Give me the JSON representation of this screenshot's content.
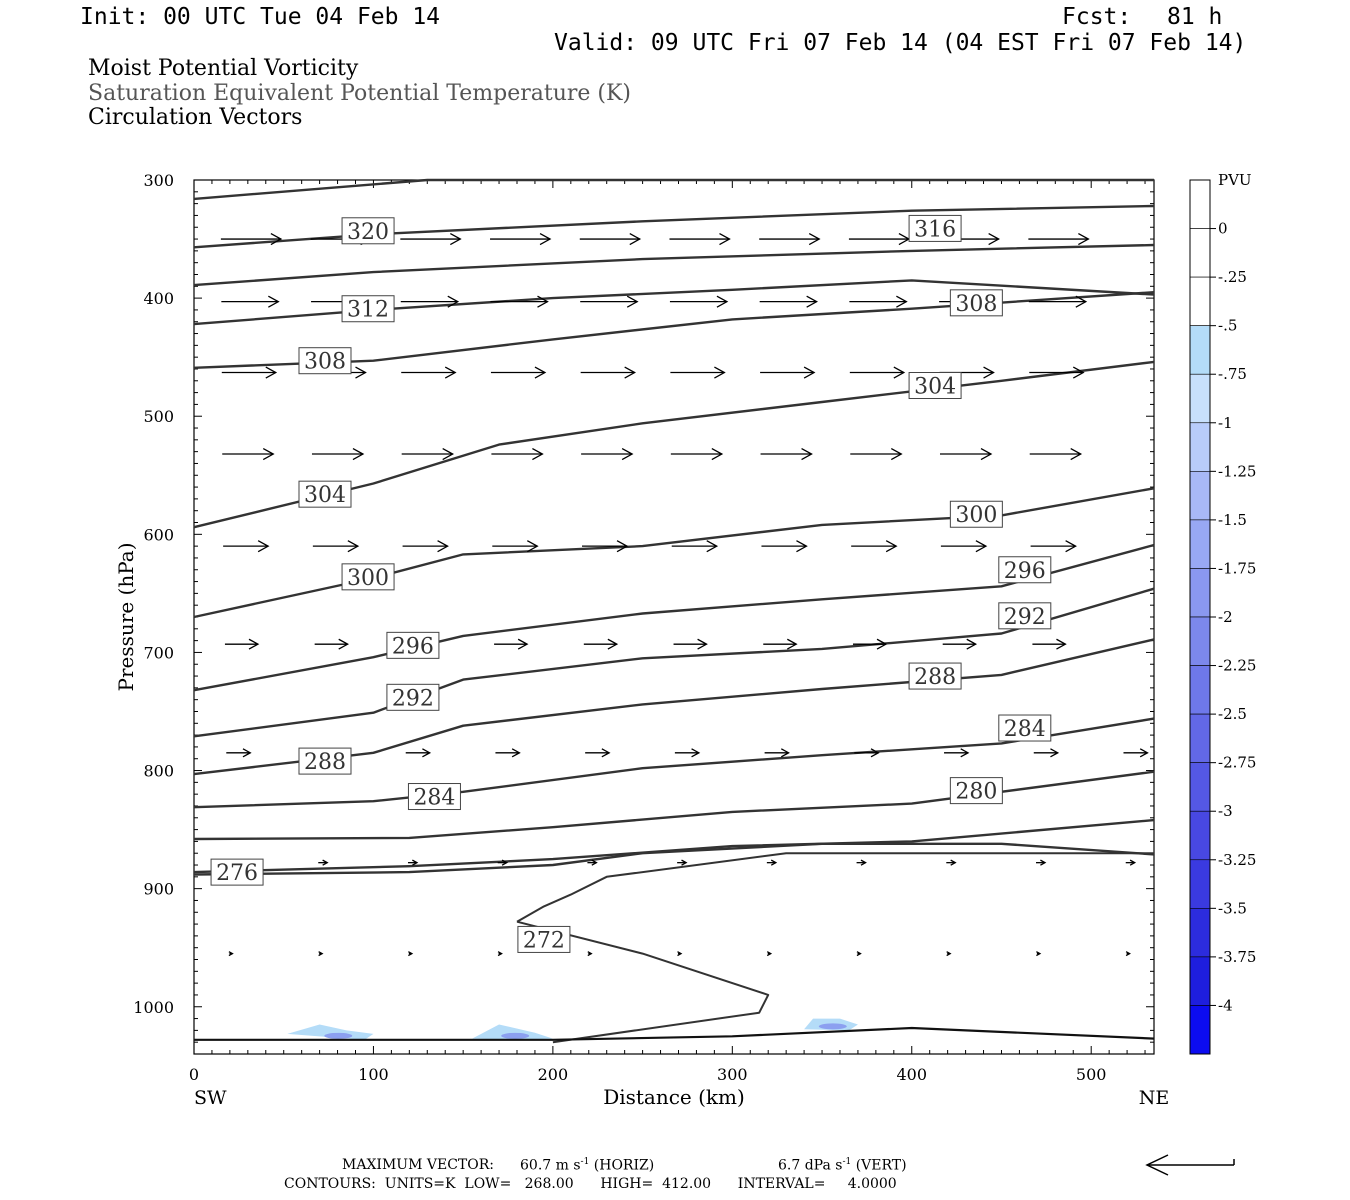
{
  "header": {
    "init": "Init: 00 UTC Tue 04 Feb 14",
    "fcst_label": "Fcst:",
    "fcst_value": "81 h",
    "valid": "Valid: 09 UTC Fri 07 Feb 14 (04 EST Fri 07 Feb 14)"
  },
  "titles": {
    "line1": "Moist Potential Vorticity",
    "line2": "Saturation Equivalent Potential Temperature (K)",
    "line3": "Circulation Vectors"
  },
  "footer": {
    "max_vector_label": "MAXIMUM VECTOR:",
    "max_horiz": "60.7 m s",
    "horiz_exp": "-1",
    "horiz_tag": "(HORIZ)",
    "max_vert": "6.7 dPa s",
    "vert_exp": "-1",
    "vert_tag": "(VERT)",
    "contours": "CONTOURS:  UNITS=K  LOW=   268.00      HIGH=  412.00      INTERVAL=     4.0000"
  },
  "colors": {
    "contour": "#333333",
    "pv_light": "#b4dcf8",
    "pv_mid": "#8ca0f0",
    "pv_dark": "#6464e6"
  },
  "chart_data": {
    "type": "cross-section",
    "xlabel": "Distance (km)",
    "ylabel": "Pressure (hPa)",
    "xlim": [
      0,
      535
    ],
    "ylim": [
      1040,
      300
    ],
    "x_ticks": [
      0,
      100,
      200,
      300,
      400,
      500
    ],
    "y_ticks": [
      300,
      400,
      500,
      600,
      700,
      800,
      900,
      1000
    ],
    "x_end_labels": {
      "left": "SW",
      "right": "NE"
    },
    "colorbar": {
      "unit": "PVU",
      "labels": [
        "0",
        "-.25",
        "-.5",
        "-.75",
        "-1",
        "-1.25",
        "-1.5",
        "-1.75",
        "-2",
        "-2.25",
        "-2.5",
        "-2.75",
        "-3",
        "-3.25",
        "-3.5",
        "-3.75",
        "-4"
      ],
      "colors": [
        "#ffffff",
        "#ffffff",
        "#b4dcf8",
        "#c8e0fc",
        "#b8ccfa",
        "#a8b8f6",
        "#98a8f4",
        "#8a98f0",
        "#7c88ec",
        "#6e78ea",
        "#6268e6",
        "#5458e4",
        "#4848e2",
        "#3a3ae0",
        "#2c2cde",
        "#1e1ede",
        "#0c0cf0"
      ]
    },
    "theta_labels": [
      {
        "text": "320",
        "x": 97,
        "p": 343
      },
      {
        "text": "316",
        "x": 413,
        "p": 341
      },
      {
        "text": "312",
        "x": 97,
        "p": 409
      },
      {
        "text": "308",
        "x": 436,
        "p": 404
      },
      {
        "text": "308",
        "x": 73,
        "p": 453
      },
      {
        "text": "304",
        "x": 413,
        "p": 474
      },
      {
        "text": "304",
        "x": 73,
        "p": 566
      },
      {
        "text": "300",
        "x": 436,
        "p": 583
      },
      {
        "text": "300",
        "x": 97,
        "p": 636
      },
      {
        "text": "296",
        "x": 463,
        "p": 630
      },
      {
        "text": "292",
        "x": 463,
        "p": 669
      },
      {
        "text": "296",
        "x": 122,
        "p": 694
      },
      {
        "text": "288",
        "x": 413,
        "p": 720
      },
      {
        "text": "292",
        "x": 122,
        "p": 738
      },
      {
        "text": "284",
        "x": 463,
        "p": 764
      },
      {
        "text": "288",
        "x": 73,
        "p": 792
      },
      {
        "text": "280",
        "x": 436,
        "p": 817
      },
      {
        "text": "284",
        "x": 134,
        "p": 822
      },
      {
        "text": "276",
        "x": 24,
        "p": 886
      },
      {
        "text": "272",
        "x": 195,
        "p": 943
      }
    ],
    "theta_contours": [
      {
        "x": [
          0,
          130,
          535
        ],
        "p": [
          316,
          300,
          300
        ]
      },
      {
        "x": [
          0,
          100,
          250,
          400,
          535
        ],
        "p": [
          357,
          346,
          335,
          326,
          322
        ]
      },
      {
        "x": [
          0,
          100,
          250,
          400,
          535
        ],
        "p": [
          389,
          378,
          367,
          360,
          355
        ]
      },
      {
        "x": [
          0,
          100,
          200,
          300,
          400,
          535
        ],
        "p": [
          422,
          410,
          400,
          393,
          385,
          397
        ]
      },
      {
        "x": [
          0,
          100,
          200,
          300,
          400,
          535
        ],
        "p": [
          459,
          453,
          435,
          418,
          409,
          395
        ]
      },
      {
        "x": [
          0,
          100,
          170,
          250,
          350,
          450,
          535
        ],
        "p": [
          594,
          557,
          524,
          506,
          488,
          470,
          454
        ]
      },
      {
        "x": [
          0,
          100,
          150,
          250,
          350,
          450,
          535
        ],
        "p": [
          670,
          637,
          617,
          610,
          592,
          584,
          561
        ]
      },
      {
        "x": [
          0,
          100,
          150,
          250,
          350,
          450,
          535
        ],
        "p": [
          732,
          704,
          686,
          667,
          655,
          644,
          609
        ]
      },
      {
        "x": [
          0,
          100,
          150,
          250,
          350,
          450,
          535
        ],
        "p": [
          771,
          751,
          723,
          705,
          697,
          684,
          646
        ]
      },
      {
        "x": [
          0,
          100,
          150,
          250,
          350,
          450,
          535
        ],
        "p": [
          803,
          785,
          762,
          744,
          731,
          719,
          689
        ]
      },
      {
        "x": [
          0,
          100,
          150,
          250,
          350,
          450,
          535
        ],
        "p": [
          831,
          826,
          818,
          798,
          787,
          777,
          756
        ]
      },
      {
        "x": [
          0,
          120,
          200,
          300,
          400,
          535
        ],
        "p": [
          858,
          857,
          848,
          835,
          828,
          801
        ]
      },
      {
        "x": [
          0,
          120,
          200,
          300,
          400,
          535
        ],
        "p": [
          886,
          881,
          875,
          864,
          860,
          842
        ]
      },
      {
        "x": [
          0,
          120,
          200,
          250,
          350,
          450,
          535
        ],
        "p": [
          888,
          886,
          880,
          870,
          862,
          862,
          871
        ]
      }
    ],
    "theta_272": {
      "x": [
        180,
        195,
        210,
        230,
        330,
        450,
        535
      ],
      "p": [
        928,
        915,
        905,
        890,
        870,
        870,
        870
      ],
      "x2": [
        180,
        250,
        320,
        315,
        200
      ],
      "p2": [
        928,
        955,
        990,
        1005,
        1030
      ]
    },
    "surface_line": {
      "x": [
        0,
        200,
        300,
        400,
        535
      ],
      "p": [
        1028,
        1028,
        1025,
        1018,
        1027
      ]
    },
    "vectors": {
      "rows_p": [
        350,
        403,
        463,
        532,
        610,
        693,
        785,
        878,
        955
      ],
      "cols_x": [
        20,
        70,
        120,
        170,
        220,
        270,
        320,
        370,
        420,
        470,
        520
      ],
      "lengths": [
        1.0,
        0.95,
        0.9,
        0.85,
        0.75,
        0.55,
        0.4,
        0.15,
        0.05
      ]
    },
    "pv_blobs": [
      {
        "x": [
          52,
          70,
          85,
          100,
          95
        ],
        "p": [
          1023,
          1015,
          1020,
          1023,
          1028
        ]
      },
      {
        "x": [
          155,
          170,
          190,
          200,
          180
        ],
        "p": [
          1027,
          1015,
          1022,
          1027,
          1028
        ]
      },
      {
        "x": [
          340,
          345,
          360,
          370,
          365
        ],
        "p": [
          1019,
          1010,
          1010,
          1015,
          1020
        ]
      }
    ]
  }
}
